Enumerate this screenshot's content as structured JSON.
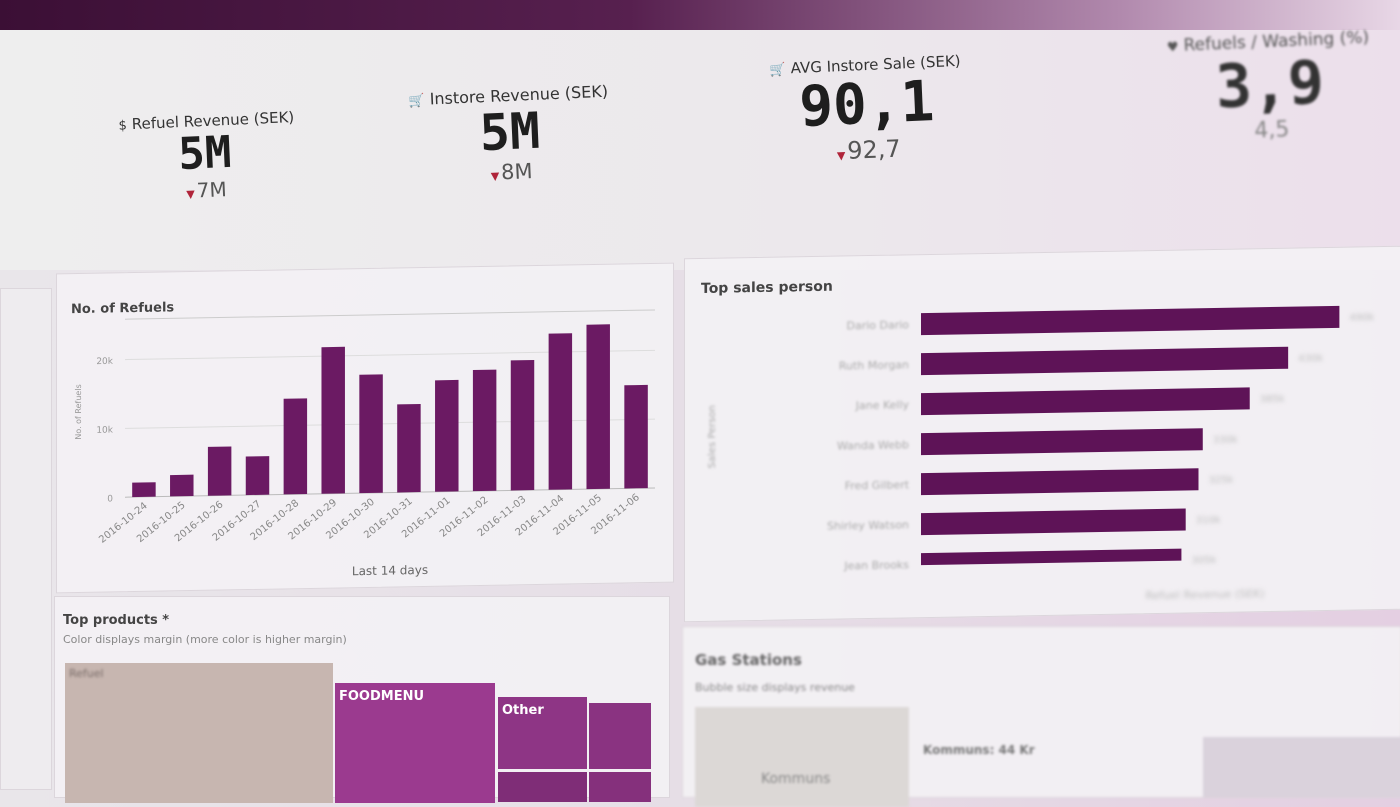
{
  "kpis": [
    {
      "icon": "$",
      "label": "Refuel Revenue (SEK)",
      "value": "5M",
      "sub": "7M"
    },
    {
      "icon": "🛒",
      "label": "Instore Revenue (SEK)",
      "value": "5M",
      "sub": "8M"
    },
    {
      "icon": "🛒",
      "label": "AVG Instore Sale (SEK)",
      "value": "90,1",
      "sub": "92,7"
    },
    {
      "icon": "♥",
      "label": "Refuels / Washing (%)",
      "value": "3,9",
      "sub": "4,5"
    }
  ],
  "refuels_panel": {
    "title": "No. of Refuels"
  },
  "sales_panel": {
    "title": "Top sales person",
    "xlabel": "Refuel Revenue (SEK)"
  },
  "products_panel": {
    "title": "Top products *",
    "subtitle": "Color displays margin (more color is higher margin)"
  },
  "stations_panel": {
    "title": "Gas Stations",
    "subtitle": "Bubble size displays revenue"
  },
  "treemap": {
    "tiles": [
      {
        "label": "Refuel",
        "color": "#c7b6b0"
      },
      {
        "label": "FOODMENU",
        "color": "#9b3a8f"
      },
      {
        "label": "Other",
        "color": "#8e3585"
      }
    ]
  },
  "map_labels": {
    "station": "Kommuns",
    "legend": "Kommuns: 44 Kr"
  },
  "chart_data": [
    {
      "type": "bar",
      "title": "No. of Refuels",
      "xlabel": "Last 14 days",
      "ylabel": "No. of Refuels",
      "categories": [
        "2016-10-24",
        "2016-10-25",
        "2016-10-26",
        "2016-10-27",
        "2016-10-28",
        "2016-10-29",
        "2016-10-30",
        "2016-10-31",
        "2016-11-01",
        "2016-11-02",
        "2016-11-03",
        "2016-11-04",
        "2016-11-05",
        "2016-11-06"
      ],
      "values": [
        2100,
        3100,
        7100,
        5600,
        13900,
        21300,
        17200,
        12800,
        16200,
        17600,
        18900,
        22700,
        23900,
        15000
      ],
      "yticks": [
        "0",
        "10k",
        "20k"
      ],
      "ylim": [
        0,
        25000
      ],
      "color": "#6b1a63"
    },
    {
      "type": "bar",
      "orientation": "horizontal",
      "title": "Top sales person",
      "xlabel": "Refuel Revenue (SEK)",
      "ylabel": "Sales Person",
      "categories": [
        "Dario Dario",
        "Ruth Morgan",
        "Jane Kelly",
        "Wanda Webb",
        "Fred Gilbert",
        "Shirley Watson",
        "Jean Brooks"
      ],
      "values": [
        490,
        430,
        385,
        330,
        325,
        310,
        305
      ],
      "data_labels": [
        "490k",
        "430k",
        "385k",
        "330k",
        "325k",
        "310k",
        "305k"
      ],
      "xlim": [
        0,
        520
      ],
      "color": "#5e1357"
    }
  ]
}
